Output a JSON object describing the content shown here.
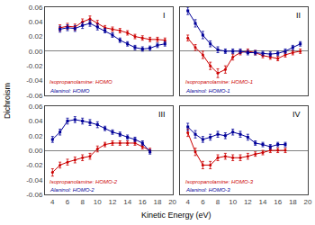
{
  "chart_data": {
    "type": "line",
    "xlabel": "Kinetic Energy (eV)",
    "ylabel": "Dichroism",
    "xlim": [
      3,
      20
    ],
    "xticks": [
      4,
      6,
      8,
      10,
      12,
      14,
      16,
      18,
      20
    ],
    "ylim": [
      -0.06,
      0.06
    ],
    "yticks": [
      -0.06,
      -0.04,
      -0.02,
      {
        "value": 0,
        "label": "0.00"
      },
      0.02,
      0.04,
      0.06
    ],
    "grid": false,
    "panels": [
      {
        "title": "I",
        "tick_labels": "y",
        "series": [
          {
            "name": "Isopropanolamine: HOMO",
            "color": "#cc0000",
            "marker": "circle",
            "x": [
              5,
              6,
              7,
              8,
              9,
              10,
              11,
              12,
              13,
              14,
              15,
              16,
              17,
              18,
              19
            ],
            "values": [
              0.032,
              0.034,
              0.033,
              0.04,
              0.044,
              0.038,
              0.032,
              0.03,
              0.028,
              0.025,
              0.02,
              0.018,
              0.016,
              0.016,
              0.015
            ],
            "errors": [
              0.004,
              0.004,
              0.004,
              0.004,
              0.004,
              0.004,
              0.003,
              0.003,
              0.003,
              0.003,
              0.003,
              0.003,
              0.003,
              0.003,
              0.003
            ]
          },
          {
            "name": "Alaninol: HOMO",
            "color": "#000099",
            "marker": "square",
            "x": [
              5,
              6,
              7,
              8,
              9,
              10,
              11,
              12,
              13,
              14,
              15,
              16,
              17,
              18,
              19
            ],
            "values": [
              0.03,
              0.032,
              0.031,
              0.035,
              0.038,
              0.033,
              0.028,
              0.022,
              0.015,
              0.01,
              0.005,
              0.003,
              0.004,
              0.008,
              0.01
            ],
            "errors": [
              0.004,
              0.004,
              0.004,
              0.004,
              0.004,
              0.004,
              0.003,
              0.003,
              0.003,
              0.003,
              0.003,
              0.003,
              0.003,
              0.003,
              0.003
            ]
          }
        ]
      },
      {
        "title": "II",
        "tick_labels": false,
        "series": [
          {
            "name": "Isopropanolamine: HOMO-1",
            "color": "#cc0000",
            "marker": "circle",
            "x": [
              4,
              5,
              6,
              7,
              8,
              9,
              10,
              11,
              12,
              13,
              14,
              15,
              16,
              17,
              18,
              19
            ],
            "values": [
              0.018,
              0.005,
              -0.005,
              -0.02,
              -0.03,
              -0.025,
              -0.008,
              -0.002,
              0.0,
              -0.002,
              -0.006,
              -0.008,
              -0.01,
              -0.005,
              -0.002,
              0.0
            ],
            "errors": [
              0.004,
              0.004,
              0.005,
              0.005,
              0.006,
              0.005,
              0.004,
              0.003,
              0.003,
              0.003,
              0.003,
              0.003,
              0.003,
              0.003,
              0.003,
              0.003
            ]
          },
          {
            "name": "Alaninol: HOMO-1",
            "color": "#000099",
            "marker": "square",
            "x": [
              4,
              5,
              6,
              7,
              8,
              9,
              10,
              11,
              12,
              13,
              14,
              15,
              16,
              17,
              18,
              19
            ],
            "values": [
              0.055,
              0.038,
              0.022,
              0.01,
              0.002,
              0.0,
              0.0,
              0.0,
              -0.002,
              -0.002,
              -0.003,
              -0.004,
              -0.003,
              0.0,
              0.005,
              0.01
            ],
            "errors": [
              0.005,
              0.005,
              0.005,
              0.004,
              0.004,
              0.003,
              0.003,
              0.003,
              0.003,
              0.003,
              0.003,
              0.003,
              0.003,
              0.003,
              0.003,
              0.003
            ]
          }
        ]
      },
      {
        "title": "III",
        "series": [
          {
            "name": "Isopropanolamine: HOMO-2",
            "color": "#cc0000",
            "marker": "circle",
            "x": [
              4,
              5,
              6,
              7,
              8,
              9,
              10,
              11,
              12,
              13,
              14,
              15,
              16,
              17
            ],
            "values": [
              -0.03,
              -0.02,
              -0.016,
              -0.013,
              -0.01,
              -0.008,
              0.002,
              0.008,
              0.01,
              0.01,
              0.01,
              0.01,
              0.005,
              0.0
            ],
            "errors": [
              0.005,
              0.004,
              0.004,
              0.004,
              0.004,
              0.004,
              0.004,
              0.003,
              0.003,
              0.003,
              0.003,
              0.003,
              0.003,
              0.003
            ]
          },
          {
            "name": "Alaninol: HOMO-2",
            "color": "#000099",
            "marker": "square",
            "x": [
              4,
              5,
              6,
              7,
              8,
              9,
              10,
              11,
              12,
              13,
              14,
              15,
              16,
              17
            ],
            "values": [
              0.015,
              0.025,
              0.04,
              0.042,
              0.04,
              0.038,
              0.035,
              0.03,
              0.025,
              0.022,
              0.018,
              0.015,
              0.01,
              -0.002
            ],
            "errors": [
              0.004,
              0.004,
              0.004,
              0.004,
              0.004,
              0.004,
              0.004,
              0.003,
              0.003,
              0.003,
              0.003,
              0.003,
              0.003,
              0.003
            ]
          }
        ]
      },
      {
        "title": "IV",
        "tick_labels": "x",
        "series": [
          {
            "name": "Isopropanolamine: HOMO-3",
            "color": "#cc0000",
            "marker": "circle",
            "x": [
              4,
              5,
              6,
              7,
              8,
              9,
              10,
              11,
              12,
              13,
              14,
              15,
              16,
              17
            ],
            "values": [
              0.024,
              -0.002,
              -0.02,
              -0.02,
              -0.01,
              -0.008,
              -0.01,
              -0.01,
              -0.008,
              -0.005,
              -0.003,
              0.0,
              0.0,
              0.0
            ],
            "errors": [
              0.005,
              0.005,
              0.005,
              0.005,
              0.004,
              0.004,
              0.004,
              0.004,
              0.004,
              0.003,
              0.003,
              0.003,
              0.003,
              0.003
            ]
          },
          {
            "name": "Alaninol: HOMO-3",
            "color": "#000099",
            "marker": "square",
            "x": [
              4,
              5,
              6,
              7,
              8,
              9,
              10,
              11,
              12,
              13,
              14,
              15,
              16,
              17
            ],
            "values": [
              0.032,
              0.022,
              0.015,
              0.018,
              0.022,
              0.02,
              0.025,
              0.022,
              0.018,
              0.01,
              0.008,
              0.005,
              0.008,
              0.008
            ],
            "errors": [
              0.005,
              0.005,
              0.004,
              0.004,
              0.004,
              0.004,
              0.004,
              0.004,
              0.004,
              0.003,
              0.003,
              0.003,
              0.003,
              0.003
            ]
          }
        ]
      }
    ]
  }
}
